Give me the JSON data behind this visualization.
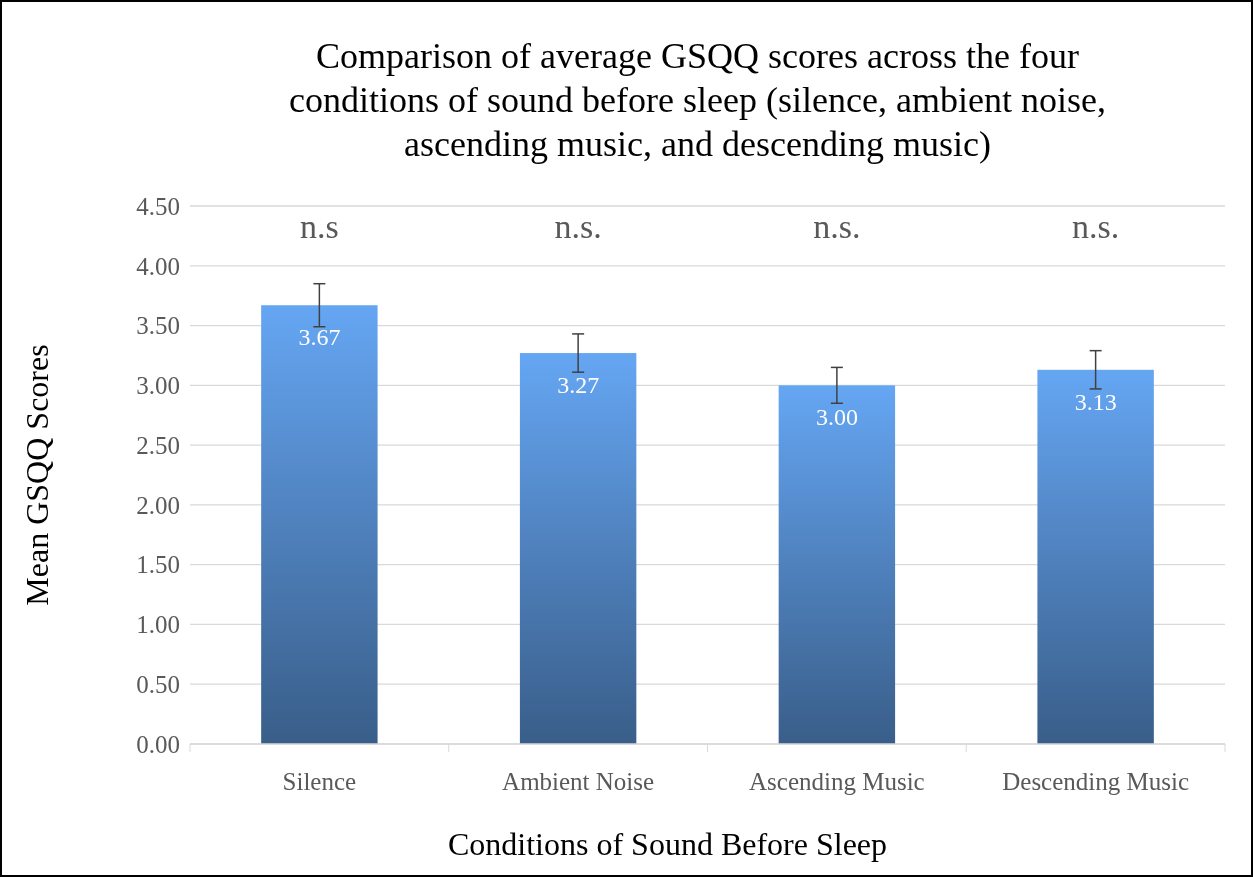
{
  "chart_data": {
    "type": "bar",
    "title": "Comparison of average GSQQ scores across the four conditions of sound before sleep (silence, ambient noise, ascending music, and descending music)",
    "xlabel": "Conditions of Sound Before Sleep",
    "ylabel": "Mean GSQQ Scores",
    "categories": [
      "Silence",
      "Ambient Noise",
      "Ascending Music",
      "Descending Music"
    ],
    "values": [
      3.67,
      3.27,
      3.0,
      3.13
    ],
    "value_labels": [
      "3.67",
      "3.27",
      "3.00",
      "3.13"
    ],
    "errors": [
      0.18,
      0.16,
      0.15,
      0.16
    ],
    "color": "#4f81bd",
    "ylim": [
      0,
      4.5
    ],
    "yticks": [
      {
        "value": 0,
        "label": "0.00"
      },
      {
        "value": 0.5,
        "label": "0.50"
      },
      {
        "value": 1,
        "label": "1.00"
      },
      {
        "value": 1.5,
        "label": "1.50"
      },
      {
        "value": 2,
        "label": "2.00"
      },
      {
        "value": 2.5,
        "label": "2.50"
      },
      {
        "value": 3,
        "label": "3.00"
      },
      {
        "value": 3.5,
        "label": "3.50"
      },
      {
        "value": 4,
        "label": "4.00"
      },
      {
        "value": 4.5,
        "label": "4.50"
      }
    ],
    "grid": "y",
    "annotations": [
      "n.s",
      "n.s.",
      "n.s.",
      "n.s."
    ]
  }
}
